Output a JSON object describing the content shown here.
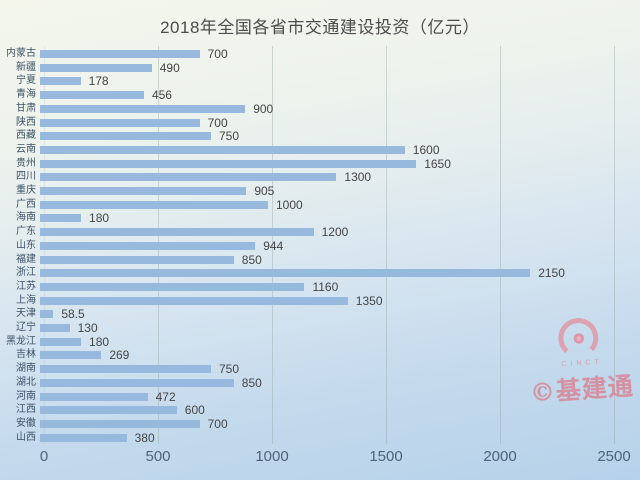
{
  "chart_data": {
    "type": "bar",
    "orientation": "horizontal",
    "title": "2018年全国各省市交通建设投资（亿元）",
    "categories": [
      "内蒙古",
      "新疆",
      "宁夏",
      "青海",
      "甘肃",
      "陕西",
      "西藏",
      "云南",
      "贵州",
      "四川",
      "重庆",
      "广西",
      "海南",
      "广东",
      "山东",
      "福建",
      "浙江",
      "江苏",
      "上海",
      "天津",
      "辽宁",
      "黑龙江",
      "吉林",
      "湖南",
      "湖北",
      "河南",
      "江西",
      "安徽",
      "山西"
    ],
    "values": [
      700,
      490,
      178,
      456,
      900,
      700,
      750,
      1600,
      1650,
      1300,
      905,
      1000,
      180,
      1200,
      944,
      850,
      2150,
      1160,
      1350,
      58.5,
      130,
      180,
      269,
      750,
      850,
      472,
      600,
      700,
      380
    ],
    "xlim": [
      0,
      2500
    ],
    "x_ticks": [
      0,
      500,
      1000,
      1500,
      2000,
      2500
    ],
    "grid": true,
    "value_labels_shown": true,
    "bar_color": "#96b9dd"
  },
  "watermark": {
    "logo_text": "CINCT",
    "brand": "©基建通",
    "color": "#db8090"
  }
}
